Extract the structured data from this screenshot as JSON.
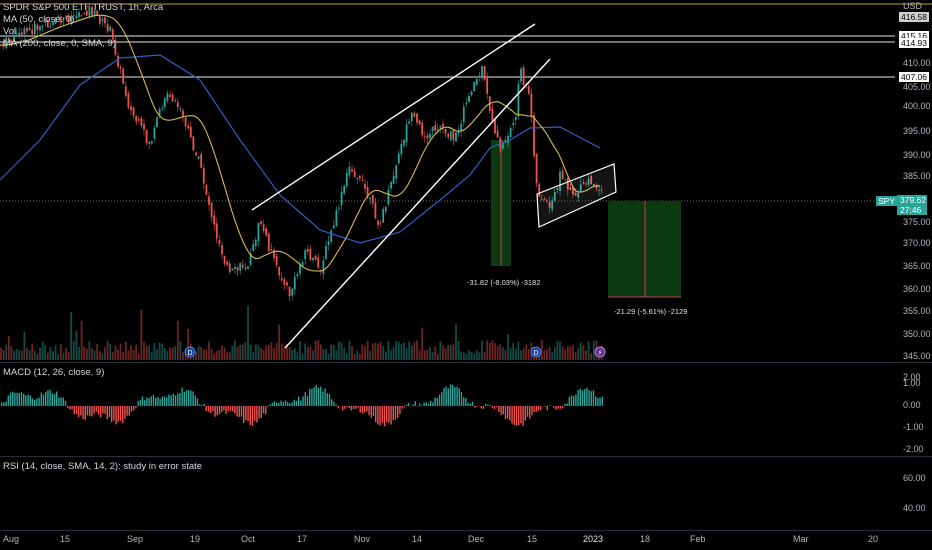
{
  "legend": {
    "title": "SPDR S&P 500 ETF TRUST, 1h, Arca",
    "ma50": "MA (50, close, 0)",
    "vol": "Vol",
    "ma200": "MA (200, close, 0, SMA, 9)",
    "macd": "MACD (12, 26, close, 9)",
    "rsi": "RSI (14, close, SMA, 14, 2): study in error state"
  },
  "price_axis": {
    "currency": "USD",
    "ticks": [
      "410.00",
      "405.00",
      "400.00",
      "395.00",
      "390.00",
      "385.00",
      "375.00",
      "370.00",
      "365.00",
      "360.00",
      "355.00",
      "350.00",
      "345.00"
    ]
  },
  "price_tags": {
    "top": "416.58",
    "line1": "415.16",
    "line2": "414.93",
    "line3": "407.06"
  },
  "last_price": {
    "symbol": "SPY",
    "price": "379.62",
    "countdown": "27:46"
  },
  "macd_axis": [
    "2.00",
    "1.00",
    "0.00",
    "-1.00",
    "-2.00"
  ],
  "rsi_axis": [
    "60.00",
    "40.00"
  ],
  "time_axis": [
    "Aug",
    "15",
    "Sep",
    "19",
    "Oct",
    "17",
    "Nov",
    "14",
    "Dec",
    "15",
    "2023",
    "18",
    "Feb",
    "Mar",
    "20"
  ],
  "measurements": {
    "first": "-31.82 (-8.03%) -3182",
    "second": "-21.29 (-5.61%) -2129"
  },
  "colors": {
    "bull": "#26a69a",
    "bear": "#ef5350",
    "ma50": "#d4b84a",
    "ma200": "#2f5fc4",
    "measure_fill": "#0b3a12",
    "orange_line": "#c99a2e"
  }
}
